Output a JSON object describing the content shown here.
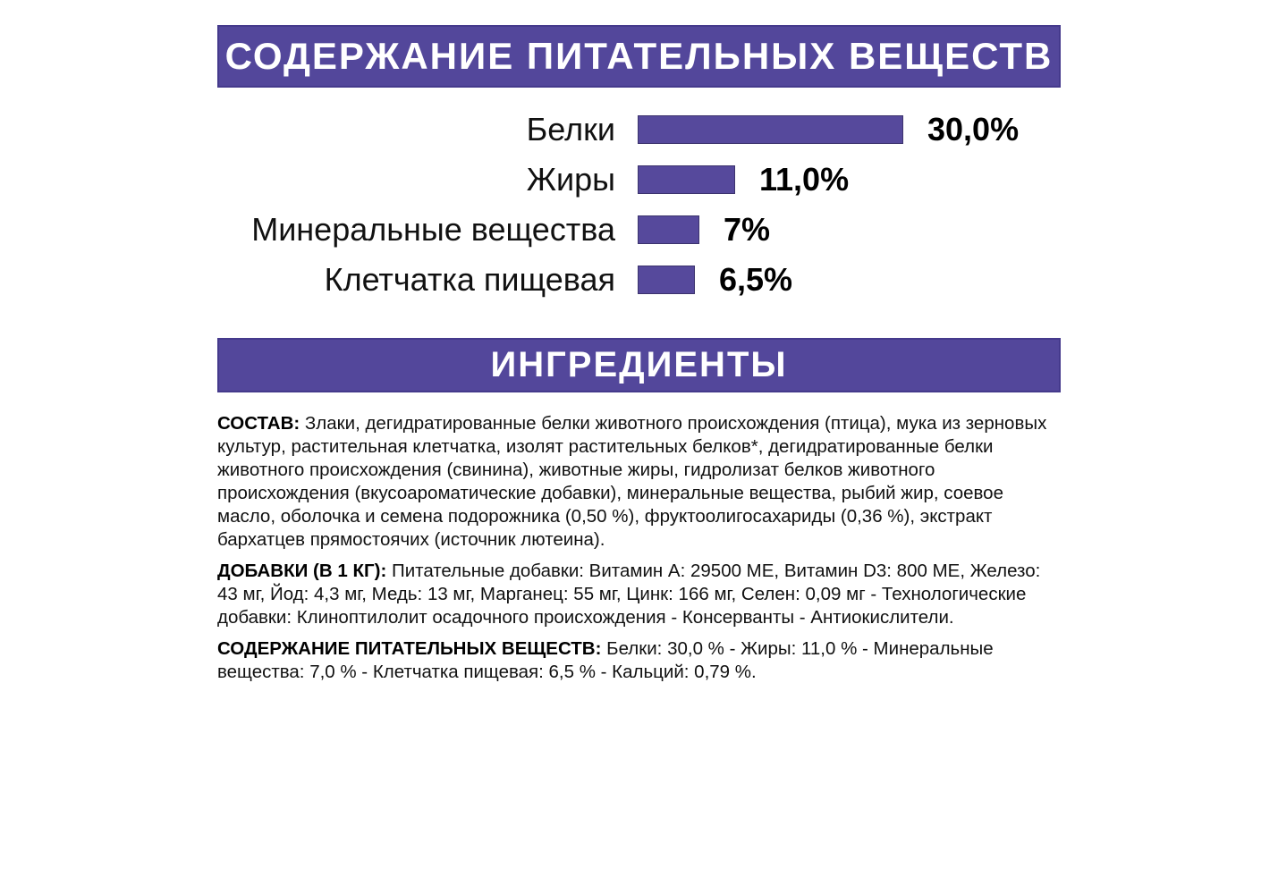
{
  "page": {
    "background": "#ffffff",
    "accent_purple": "#53479B",
    "text_color": "#111111"
  },
  "sections": {
    "nutrients_header": "СОДЕРЖАНИЕ ПИТАТЕЛЬНЫХ ВЕЩЕСТВ",
    "ingredients_header": "ИНГРЕДИЕНТЫ"
  },
  "chart_data": {
    "type": "bar",
    "orientation": "horizontal",
    "title": "СОДЕРЖАНИЕ ПИТАТЕЛЬНЫХ ВЕЩЕСТВ",
    "categories": [
      "Белки",
      "Жиры",
      "Минеральные вещества",
      "Клетчатка пищевая"
    ],
    "values": [
      30.0,
      11.0,
      7.0,
      6.5
    ],
    "value_labels": [
      "30,0%",
      "11,0%",
      "7%",
      "6,5%"
    ],
    "unit": "%",
    "xlabel": "",
    "ylabel": "",
    "xlim": [
      0,
      30
    ],
    "grid": false,
    "legend": false,
    "bar_color": "#56499C"
  },
  "paragraphs": [
    {
      "label": "СОСТАВ:",
      "text": "Злаки, дегидратированные белки животного происхождения (птица), мука из зерновых культур, растительная клетчатка, изолят растительных белков*, дегидратированные белки животного происхождения (свинина), животные жиры, гидролизат белков животного происхождения (вкусоароматические добавки), минеральные вещества, рыбий жир, соевое масло, оболочка и семена подорожника (0,50 %), фруктоолигосахариды (0,36 %), экстракт бархатцев прямостоячих (источник лютеина)."
    },
    {
      "label": "ДОБАВКИ (В 1 КГ):",
      "text": "Питательные добавки: Витамин A: 29500 МЕ, Витамин D3: 800 МЕ, Железо: 43 мг, Йод: 4,3 мг, Медь: 13 мг, Марганец: 55 мг, Цинк: 166 мг, Селен: 0,09 мг - Технологические добавки: Клиноптилолит осадочного происхождения - Консерванты - Антиокислители."
    },
    {
      "label": "СОДЕРЖАНИЕ ПИТАТЕЛЬНЫХ ВЕЩЕСТВ:",
      "text": "Белки: 30,0 % - Жиры: 11,0 % - Минеральные вещества: 7,0 % - Клетчатка пищевая: 6,5 % - Кальций: 0,79 %."
    }
  ]
}
